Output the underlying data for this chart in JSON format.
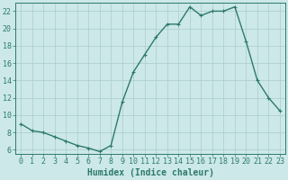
{
  "x": [
    0,
    1,
    2,
    3,
    4,
    5,
    6,
    7,
    8,
    9,
    10,
    11,
    12,
    13,
    14,
    15,
    16,
    17,
    18,
    19,
    20,
    21,
    22,
    23
  ],
  "y": [
    9,
    8.2,
    8.0,
    7.5,
    7.0,
    6.5,
    6.2,
    5.8,
    6.5,
    11.5,
    15,
    17,
    19,
    20.5,
    20.5,
    22.5,
    21.5,
    22,
    22,
    22.5,
    18.5,
    14,
    12,
    10.5
  ],
  "line_color": "#2d7a6a",
  "marker": "+",
  "marker_size": 3,
  "marker_linewidth": 0.8,
  "bg_color": "#cce8e8",
  "grid_color": "#aacccc",
  "xlabel": "Humidex (Indice chaleur)",
  "xlim": [
    -0.5,
    23.5
  ],
  "ylim": [
    5.5,
    23.0
  ],
  "yticks": [
    6,
    8,
    10,
    12,
    14,
    16,
    18,
    20,
    22
  ],
  "xticks": [
    0,
    1,
    2,
    3,
    4,
    5,
    6,
    7,
    8,
    9,
    10,
    11,
    12,
    13,
    14,
    15,
    16,
    17,
    18,
    19,
    20,
    21,
    22,
    23
  ],
  "tick_label_fontsize": 6,
  "xlabel_fontsize": 7,
  "tick_color": "#2d7a6a",
  "spine_color": "#2d7a6a",
  "linewidth": 1.0
}
